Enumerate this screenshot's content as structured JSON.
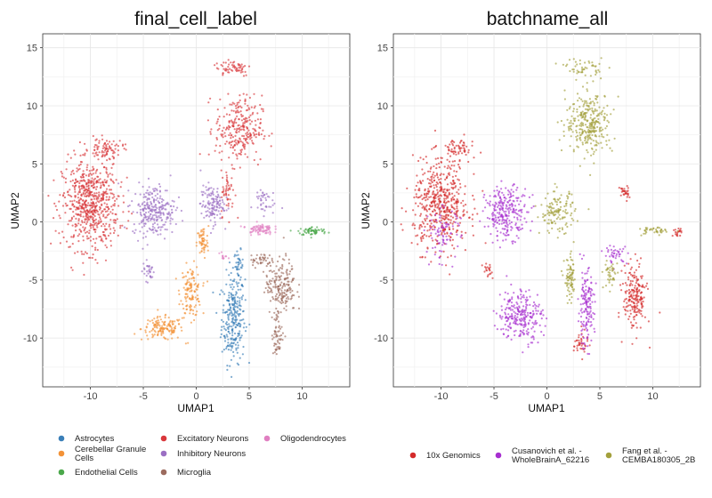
{
  "chart_data": [
    {
      "type": "scatter",
      "title": "final_cell_label",
      "xlabel": "UMAP1",
      "ylabel": "UMAP2",
      "xlim": [
        -14.5,
        14.5
      ],
      "ylim": [
        -14.2,
        16.2
      ],
      "xticks": [
        -10,
        -5,
        0,
        5,
        10
      ],
      "yticks": [
        -10,
        -5,
        0,
        5,
        10,
        15
      ],
      "xtick_labels": [
        "-10",
        "-5",
        "0",
        "5",
        "10"
      ],
      "ytick_labels": [
        "-10",
        "-5",
        "0",
        "5",
        "10",
        "15"
      ],
      "grid": true,
      "legend_position": "bottom",
      "series": [
        {
          "name": "Astrocytes",
          "color": "#3a7fb8",
          "clusters": [
            {
              "cx": 3.5,
              "cy": -8.3,
              "sx": 1.0,
              "sy": 3.5,
              "n": 260
            },
            {
              "cx": 4.0,
              "cy": -3.8,
              "sx": 0.4,
              "sy": 1.2,
              "n": 40
            }
          ]
        },
        {
          "name": "Cerebellar Granule\nCells",
          "color": "#f39237",
          "clusters": [
            {
              "cx": -3.2,
              "cy": -9.2,
              "sx": 1.8,
              "sy": 0.9,
              "n": 140
            },
            {
              "cx": -0.5,
              "cy": -6.0,
              "sx": 0.9,
              "sy": 2.0,
              "n": 130
            },
            {
              "cx": 0.6,
              "cy": -1.8,
              "sx": 0.5,
              "sy": 1.3,
              "n": 60
            }
          ]
        },
        {
          "name": "Endothelial Cells",
          "color": "#4aa84a",
          "clusters": [
            {
              "cx": 11.0,
              "cy": -0.8,
              "sx": 1.3,
              "sy": 0.35,
              "n": 60
            }
          ]
        },
        {
          "name": "Excitatory Neurons",
          "color": "#d9373b",
          "clusters": [
            {
              "cx": -10.0,
              "cy": 1.5,
              "sx": 2.4,
              "sy": 3.5,
              "n": 650
            },
            {
              "cx": -8.5,
              "cy": 6.3,
              "sx": 1.5,
              "sy": 0.8,
              "n": 80
            },
            {
              "cx": 4.0,
              "cy": 8.0,
              "sx": 2.0,
              "sy": 2.6,
              "n": 270
            },
            {
              "cx": 3.5,
              "cy": 13.3,
              "sx": 1.6,
              "sy": 0.7,
              "n": 60
            },
            {
              "cx": 3.0,
              "cy": 2.5,
              "sx": 0.6,
              "sy": 1.8,
              "n": 50
            }
          ]
        },
        {
          "name": "Inhibitory Neurons",
          "color": "#9b6fc3",
          "clusters": [
            {
              "cx": -4.0,
              "cy": 1.0,
              "sx": 1.8,
              "sy": 2.0,
              "n": 260
            },
            {
              "cx": 1.5,
              "cy": 1.5,
              "sx": 1.0,
              "sy": 1.5,
              "n": 130
            },
            {
              "cx": 6.3,
              "cy": 1.8,
              "sx": 1.0,
              "sy": 1.1,
              "n": 40
            },
            {
              "cx": -4.5,
              "cy": -4.2,
              "sx": 0.5,
              "sy": 0.8,
              "n": 30
            }
          ]
        },
        {
          "name": "Microglia",
          "color": "#9c6b5e",
          "clusters": [
            {
              "cx": 8.0,
              "cy": -5.5,
              "sx": 1.3,
              "sy": 2.1,
              "n": 190
            },
            {
              "cx": 7.7,
              "cy": -9.6,
              "sx": 0.5,
              "sy": 1.8,
              "n": 60
            },
            {
              "cx": 6.0,
              "cy": -3.3,
              "sx": 1.0,
              "sy": 0.6,
              "n": 40
            }
          ]
        },
        {
          "name": "Oligodendrocytes",
          "color": "#e07fc1",
          "clusters": [
            {
              "cx": 6.0,
              "cy": -0.6,
              "sx": 1.1,
              "sy": 0.45,
              "n": 80
            },
            {
              "cx": 2.5,
              "cy": -3.0,
              "sx": 0.4,
              "sy": 0.4,
              "n": 12
            }
          ]
        }
      ]
    },
    {
      "type": "scatter",
      "title": "batchname_all",
      "xlabel": "UMAP1",
      "ylabel": "UMAP2",
      "xlim": [
        -14.5,
        14.5
      ],
      "ylim": [
        -14.2,
        16.2
      ],
      "xticks": [
        -10,
        -5,
        0,
        5,
        10
      ],
      "yticks": [
        -10,
        -5,
        0,
        5,
        10,
        15
      ],
      "xtick_labels": [
        "-10",
        "-5",
        "0",
        "5",
        "10"
      ],
      "ytick_labels": [
        "-10",
        "-5",
        "0",
        "5",
        "10",
        "15"
      ],
      "grid": true,
      "legend_position": "bottom",
      "series": [
        {
          "name": "10x Genomics",
          "color": "#d42a2a",
          "clusters": [
            {
              "cx": -10.0,
              "cy": 1.5,
              "sx": 2.4,
              "sy": 3.5,
              "n": 500
            },
            {
              "cx": -8.5,
              "cy": 6.3,
              "sx": 1.5,
              "sy": 0.8,
              "n": 60
            },
            {
              "cx": 8.3,
              "cy": -6.5,
              "sx": 1.0,
              "sy": 2.6,
              "n": 200
            },
            {
              "cx": 3.2,
              "cy": -10.5,
              "sx": 0.6,
              "sy": 1.0,
              "n": 40
            },
            {
              "cx": -5.5,
              "cy": -4.2,
              "sx": 0.5,
              "sy": 0.7,
              "n": 20
            },
            {
              "cx": 7.3,
              "cy": 2.5,
              "sx": 0.4,
              "sy": 0.6,
              "n": 30
            },
            {
              "cx": 12.3,
              "cy": -0.9,
              "sx": 0.4,
              "sy": 0.3,
              "n": 20
            }
          ]
        },
        {
          "name": "Cusanovich et al. -\nWholeBrainA_62216",
          "color": "#a72fd0",
          "clusters": [
            {
              "cx": -3.8,
              "cy": 0.8,
              "sx": 1.8,
              "sy": 2.0,
              "n": 260
            },
            {
              "cx": -2.5,
              "cy": -8.0,
              "sx": 1.9,
              "sy": 2.0,
              "n": 250
            },
            {
              "cx": 3.7,
              "cy": -7.5,
              "sx": 0.7,
              "sy": 3.0,
              "n": 150
            },
            {
              "cx": -9.8,
              "cy": -1.0,
              "sx": 1.5,
              "sy": 2.0,
              "n": 80
            },
            {
              "cx": 6.5,
              "cy": -2.8,
              "sx": 1.0,
              "sy": 0.7,
              "n": 40
            }
          ]
        },
        {
          "name": "Fang et al. -\nCEMBA180305_2B",
          "color": "#a3a03c",
          "clusters": [
            {
              "cx": 4.0,
              "cy": 8.5,
              "sx": 2.0,
              "sy": 2.4,
              "n": 300
            },
            {
              "cx": 3.5,
              "cy": 13.3,
              "sx": 1.6,
              "sy": 0.7,
              "n": 50
            },
            {
              "cx": 1.0,
              "cy": 0.8,
              "sx": 1.5,
              "sy": 1.6,
              "n": 130
            },
            {
              "cx": 2.2,
              "cy": -5.0,
              "sx": 0.5,
              "sy": 1.8,
              "n": 80
            },
            {
              "cx": 6.0,
              "cy": -4.5,
              "sx": 0.6,
              "sy": 1.2,
              "n": 40
            },
            {
              "cx": 10.0,
              "cy": -0.8,
              "sx": 1.2,
              "sy": 0.35,
              "n": 40
            }
          ]
        }
      ]
    }
  ]
}
